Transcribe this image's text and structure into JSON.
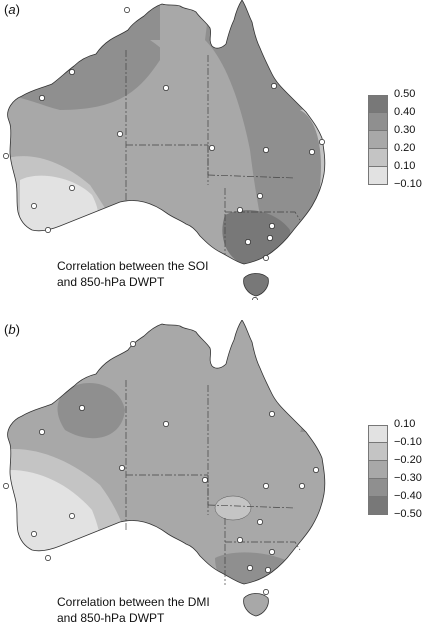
{
  "panel_a": {
    "label": "a",
    "caption_line1": "Correlation between the SOI",
    "caption_line2": "and 850-hPa DWPT",
    "legend": {
      "colors": [
        "#787878",
        "#8f8f8f",
        "#a8a8a8",
        "#c4c4c4",
        "#e2e2e2"
      ],
      "values": [
        "0.50",
        "0.40",
        "0.30",
        "0.20",
        "0.10",
        "−0.10"
      ]
    }
  },
  "panel_b": {
    "label": "b",
    "caption_line1": "Correlation between the DMI",
    "caption_line2": "and 850-hPa DWPT",
    "legend": {
      "colors": [
        "#e2e2e2",
        "#c4c4c4",
        "#a8a8a8",
        "#8f8f8f",
        "#787878"
      ],
      "values": [
        "0.10",
        "−0.10",
        "−0.20",
        "−0.30",
        "−0.40",
        "−0.50"
      ]
    }
  },
  "map": {
    "station_icon": "station-marker-icon",
    "shade_colors": {
      "land": "#a8a8a8",
      "very_light": "#e2e2e2",
      "light": "#c4c4c4",
      "mid": "#a8a8a8",
      "dark": "#8f8f8f",
      "darkest": "#787878"
    }
  }
}
